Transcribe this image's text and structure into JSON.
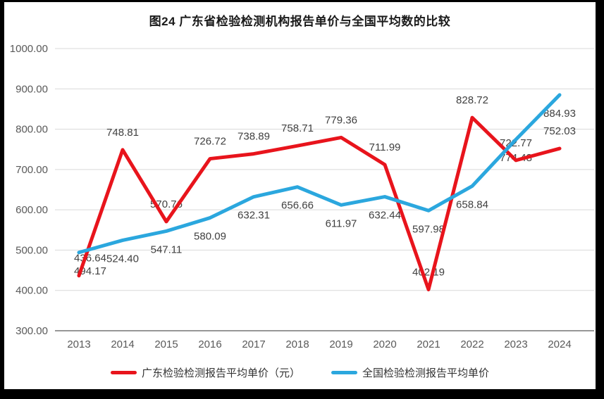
{
  "title": "图24  广东省检验检测机构报告单价与全国平均数的比较",
  "chart_data": {
    "type": "line",
    "title": "图24  广东省检验检测机构报告单价与全国平均数的比较",
    "categories": [
      "2013",
      "2014",
      "2015",
      "2016",
      "2017",
      "2018",
      "2019",
      "2020",
      "2021",
      "2022",
      "2023",
      "2024"
    ],
    "series": [
      {
        "name": "广东检验检测报告平均单价（元）",
        "color": "#e8141c",
        "values": [
          436.64,
          748.81,
          570.76,
          726.72,
          738.89,
          758.71,
          779.36,
          711.99,
          402.19,
          828.72,
          722.77,
          752.03
        ],
        "label_position": "above",
        "label_dx": [
          16,
          0,
          0,
          0,
          0,
          0,
          0,
          0,
          0,
          0,
          0,
          0
        ]
      },
      {
        "name": "全国检验检测报告平均单价",
        "color": "#2ba7de",
        "values": [
          494.17,
          524.4,
          547.11,
          580.09,
          632.31,
          656.66,
          611.97,
          632.44,
          597.98,
          658.84,
          774.48,
          884.93
        ],
        "label_position": "below",
        "label_dx": [
          16,
          0,
          0,
          0,
          0,
          0,
          0,
          0,
          0,
          0,
          0,
          0
        ]
      }
    ],
    "ylim": [
      300,
      1000
    ],
    "ytick_step": 100,
    "ytick_format_decimals": 2,
    "grid": "horizontal",
    "legend_position": "bottom",
    "gridline_color": "#d9d9d9",
    "axis_line_color": "#595959",
    "tick_label_color": "#595959",
    "data_label_color": "#404040",
    "line_width": 5
  },
  "legend": {
    "items": [
      {
        "label": "广东检验检测报告平均单价（元）",
        "color": "#e8141c"
      },
      {
        "label": "全国检验检测报告平均单价",
        "color": "#2ba7de"
      }
    ]
  }
}
